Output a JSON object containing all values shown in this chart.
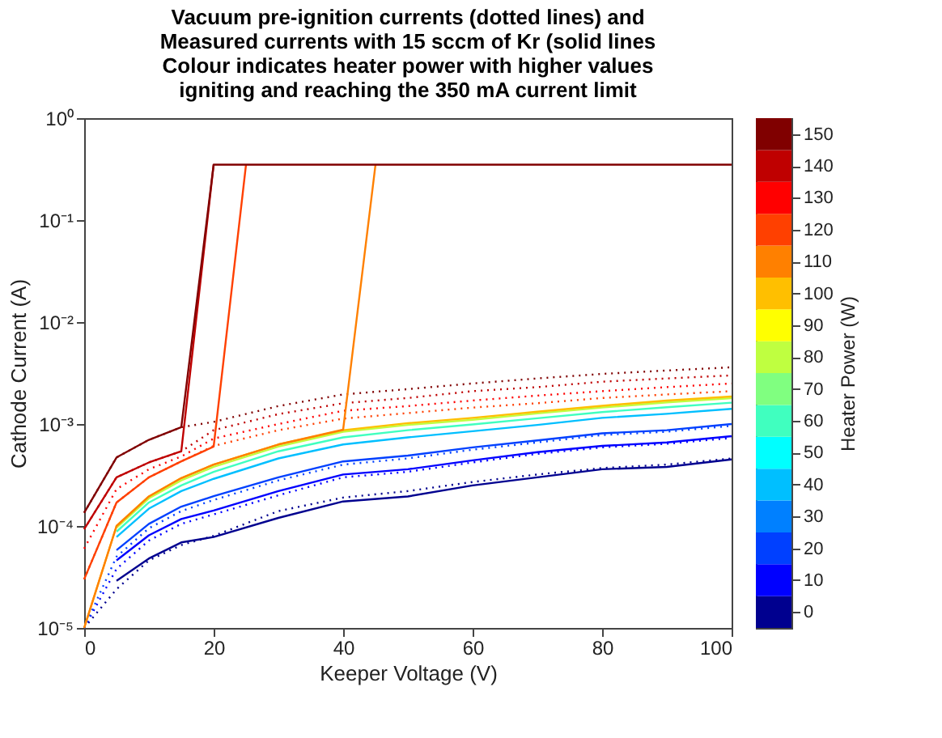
{
  "chart_data": {
    "type": "line",
    "title": [
      "Vacuum pre-ignition currents (dotted lines) and",
      "Measured currents with 15 sccm of Kr (solid lines",
      "Colour indicates heater power with higher values",
      "igniting and reaching the 350 mA current limit"
    ],
    "xlabel": "Keeper Voltage (V)",
    "ylabel": "Cathode Current (A)",
    "clabel": "Heater Power (W)",
    "log": "y",
    "grid": false,
    "xlim": [
      0,
      100
    ],
    "xticks": [
      0,
      20,
      40,
      60,
      80,
      100
    ],
    "ylim": [
      1e-05,
      1
    ],
    "yticks": [
      {
        "value": 1e-05,
        "label": "10⁻⁵"
      },
      {
        "value": 0.0001,
        "label": "10⁻⁴"
      },
      {
        "value": 0.001,
        "label": "10⁻³"
      },
      {
        "value": 0.01,
        "label": "10⁻²"
      },
      {
        "value": 0.1,
        "label": "10⁻¹"
      },
      {
        "value": 1,
        "label": "10⁰"
      }
    ],
    "clim": [
      -5,
      155
    ],
    "cticks": [
      0,
      10,
      20,
      30,
      40,
      50,
      60,
      70,
      80,
      90,
      100,
      110,
      120,
      130,
      140,
      150
    ],
    "colors": [
      "#00008f",
      "#0000ff",
      "#0040ff",
      "#0080ff",
      "#00bfff",
      "#00ffff",
      "#40ffbf",
      "#80ff80",
      "#bfff40",
      "#ffff00",
      "#ffbf00",
      "#ff8000",
      "#ff4000",
      "#ff0000",
      "#bf0000",
      "#800000"
    ],
    "series": [
      {
        "color": "#00008f",
        "line_style": "dotted",
        "x": [
          0,
          5,
          10,
          15,
          20,
          30,
          40,
          50,
          60,
          70,
          80,
          90,
          100
        ],
        "values": [
          1e-05,
          2.4e-05,
          4.6e-05,
          6.5e-05,
          8e-05,
          0.00014,
          0.00019,
          0.00022,
          0.00027,
          0.00032,
          0.00037,
          0.0004,
          0.00046
        ]
      },
      {
        "color": "#0000ff",
        "line_style": "dotted",
        "x": [
          0,
          5,
          10,
          15,
          20,
          30,
          40,
          50,
          60,
          70,
          80,
          90,
          100
        ],
        "values": [
          1e-05,
          3.8e-05,
          7.2e-05,
          0.000105,
          0.00013,
          0.0002,
          0.0003,
          0.00034,
          0.00042,
          0.00051,
          0.00059,
          0.00064,
          0.00073
        ]
      },
      {
        "color": "#0040ff",
        "line_style": "dotted",
        "x": [
          0,
          5,
          10,
          15,
          20,
          30,
          40,
          50,
          60,
          70,
          80,
          90,
          100
        ],
        "values": [
          1e-05,
          5e-05,
          9.5e-05,
          0.00014,
          0.00018,
          0.00028,
          0.0004,
          0.00046,
          0.00056,
          0.00066,
          0.00078,
          0.00084,
          0.00096
        ]
      },
      {
        "color": "#ff4000",
        "line_style": "dotted",
        "x": [
          0,
          5,
          10,
          15,
          20,
          30,
          40,
          50,
          60,
          70,
          80,
          90,
          100
        ],
        "values": [
          3e-05,
          0.00017,
          0.0003,
          0.00043,
          0.00061,
          0.00087,
          0.00113,
          0.00128,
          0.00145,
          0.0016,
          0.0018,
          0.00195,
          0.0021
        ]
      },
      {
        "color": "#ff0000",
        "line_style": "dotted",
        "x": [
          0,
          5,
          10,
          15,
          20,
          30,
          40,
          50,
          60,
          70,
          80,
          90,
          100
        ],
        "values": [
          6e-05,
          0.00023,
          0.00036,
          0.00048,
          0.00072,
          0.001,
          0.00135,
          0.0015,
          0.0017,
          0.0019,
          0.0021,
          0.0023,
          0.0025
        ]
      },
      {
        "color": "#bf0000",
        "line_style": "dotted",
        "x": [
          0,
          5,
          10,
          15,
          20,
          30,
          40,
          50,
          60,
          70,
          80,
          90,
          100
        ],
        "values": [
          9.3e-05,
          0.0003,
          0.00042,
          0.00054,
          0.00087,
          0.00125,
          0.0016,
          0.0018,
          0.0021,
          0.0023,
          0.0026,
          0.0028,
          0.003
        ]
      },
      {
        "color": "#800000",
        "line_style": "dotted",
        "x": [
          0,
          5,
          10,
          15,
          20,
          30,
          40,
          50,
          60,
          70,
          80,
          90,
          100
        ],
        "values": [
          0.000135,
          0.00047,
          0.0007,
          0.00093,
          0.00105,
          0.0015,
          0.00195,
          0.0022,
          0.0025,
          0.0028,
          0.0031,
          0.00335,
          0.0036
        ]
      },
      {
        "color": "#00008f",
        "line_style": "solid",
        "x": [
          5,
          10,
          15,
          20,
          30,
          40,
          50,
          60,
          70,
          80,
          90,
          100
        ],
        "values": [
          2.9e-05,
          4.8e-05,
          6.9e-05,
          7.8e-05,
          0.00012,
          0.000174,
          0.000195,
          0.00025,
          0.0003,
          0.00036,
          0.00038,
          0.00045
        ]
      },
      {
        "color": "#0000ff",
        "line_style": "solid",
        "x": [
          5,
          10,
          15,
          20,
          30,
          40,
          50,
          60,
          70,
          80,
          90,
          100
        ],
        "values": [
          4.6e-05,
          8.1e-05,
          0.000117,
          0.000142,
          0.00022,
          0.00032,
          0.00036,
          0.00044,
          0.00053,
          0.00061,
          0.00066,
          0.00076
        ]
      },
      {
        "color": "#0040ff",
        "line_style": "solid",
        "x": [
          5,
          10,
          15,
          20,
          30,
          40,
          50,
          60,
          70,
          80,
          90,
          100
        ],
        "values": [
          5.8e-05,
          0.000105,
          0.000155,
          0.000196,
          0.0003,
          0.00043,
          0.00049,
          0.00059,
          0.00069,
          0.00081,
          0.00087,
          0.001
        ]
      },
      {
        "color": "#00bfff",
        "line_style": "solid",
        "x": [
          5,
          10,
          15,
          20,
          30,
          40,
          50,
          60,
          70,
          80,
          90,
          100
        ],
        "values": [
          7.8e-05,
          0.000148,
          0.00022,
          0.00029,
          0.00046,
          0.00063,
          0.00074,
          0.00085,
          0.00098,
          0.00115,
          0.00126,
          0.00141
        ]
      },
      {
        "color": "#40ffbf",
        "line_style": "solid",
        "x": [
          5,
          10,
          15,
          20,
          30,
          40,
          50,
          60,
          70,
          80,
          90,
          100
        ],
        "values": [
          8.8e-05,
          0.00017,
          0.00025,
          0.00034,
          0.00054,
          0.00074,
          0.00087,
          0.00099,
          0.00114,
          0.00131,
          0.00146,
          0.00162
        ]
      },
      {
        "color": "#bfff40",
        "line_style": "solid",
        "x": [
          5,
          10,
          15,
          20,
          30,
          40,
          50,
          60,
          70,
          80,
          90,
          100
        ],
        "values": [
          9.6e-05,
          0.000187,
          0.00028,
          0.00038,
          0.0006,
          0.00084,
          0.00098,
          0.0011,
          0.00127,
          0.00145,
          0.00163,
          0.00179
        ]
      },
      {
        "color": "#ffbf00",
        "line_style": "solid",
        "x": [
          0,
          5,
          10,
          15,
          20,
          30,
          40,
          50,
          60,
          70,
          80,
          90,
          100
        ],
        "values": [
          1e-05,
          0.0001,
          0.000195,
          0.000295,
          0.0004,
          0.00063,
          0.00087,
          0.00102,
          0.00115,
          0.00132,
          0.00151,
          0.0017,
          0.00186
        ]
      },
      {
        "color": "#ff8000",
        "line_style": "solid",
        "x": [
          0,
          5,
          10,
          15,
          20,
          30,
          40,
          45
        ],
        "values": [
          1e-05,
          0.0001,
          0.000195,
          0.000295,
          0.0004,
          0.00063,
          0.00088,
          0.35
        ]
      },
      {
        "color": "#ff4000",
        "line_style": "solid",
        "x": [
          0,
          5,
          10,
          15,
          20,
          25
        ],
        "values": [
          3e-05,
          0.00017,
          0.0003,
          0.00043,
          0.0006,
          0.35
        ]
      },
      {
        "color": "#bf0000",
        "line_style": "solid",
        "x": [
          0,
          5,
          10,
          15,
          20
        ],
        "values": [
          9.3e-05,
          0.0003,
          0.00042,
          0.00054,
          0.35
        ]
      },
      {
        "color": "#800000",
        "line_style": "solid",
        "x": [
          0,
          5,
          10,
          15,
          20,
          30,
          40,
          50,
          60,
          70,
          80,
          90,
          100
        ],
        "values": [
          0.000135,
          0.00047,
          0.0007,
          0.00093,
          0.35,
          0.35,
          0.35,
          0.35,
          0.35,
          0.35,
          0.35,
          0.35,
          0.35
        ]
      }
    ]
  }
}
